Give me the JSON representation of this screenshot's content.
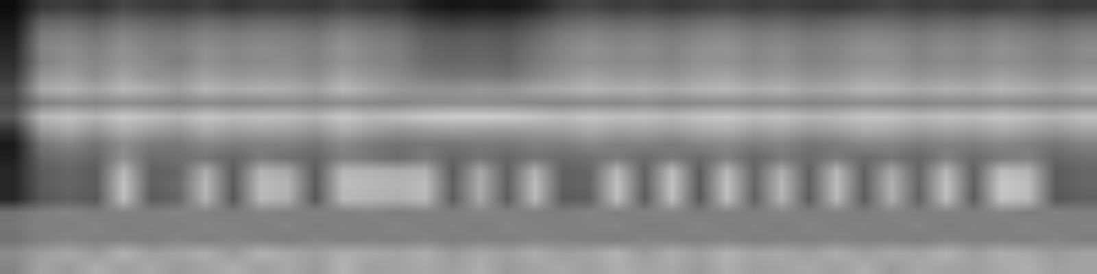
{
  "chart_data": {
    "type": "heatmap",
    "tick_labels": false,
    "color_range": [
      0,
      100
    ],
    "cells": [
      [
        5,
        22,
        25,
        20,
        28,
        24,
        22,
        26,
        20,
        25,
        24,
        22,
        27,
        23,
        21,
        12,
        8,
        10,
        9,
        14,
        25,
        28,
        24,
        26,
        22,
        25,
        27,
        24,
        26,
        23,
        22,
        25,
        28,
        24,
        26,
        23,
        25,
        27,
        22,
        24
      ],
      [
        8,
        38,
        40,
        35,
        42,
        38,
        36,
        41,
        37,
        40,
        39,
        36,
        42,
        38,
        35,
        26,
        22,
        24,
        23,
        30,
        38,
        42,
        39,
        40,
        37,
        41,
        43,
        38,
        40,
        36,
        38,
        42,
        41,
        37,
        40,
        38,
        42,
        39,
        36,
        40
      ],
      [
        12,
        48,
        50,
        45,
        52,
        47,
        46,
        51,
        48,
        50,
        49,
        46,
        53,
        48,
        45,
        36,
        34,
        35,
        33,
        40,
        48,
        52,
        49,
        50,
        47,
        51,
        53,
        48,
        50,
        46,
        48,
        52,
        51,
        47,
        50,
        48,
        52,
        49,
        46,
        50
      ],
      [
        15,
        52,
        55,
        50,
        57,
        51,
        50,
        56,
        52,
        55,
        53,
        50,
        58,
        52,
        49,
        40,
        38,
        39,
        37,
        45,
        52,
        57,
        53,
        55,
        51,
        56,
        58,
        52,
        55,
        50,
        52,
        57,
        56,
        51,
        55,
        52,
        57,
        53,
        50,
        55
      ],
      [
        18,
        50,
        56,
        52,
        58,
        54,
        49,
        57,
        53,
        54,
        55,
        51,
        57,
        53,
        50,
        42,
        40,
        41,
        39,
        47,
        53,
        56,
        54,
        54,
        52,
        57,
        57,
        53,
        56,
        51,
        53,
        56,
        57,
        52,
        54,
        53,
        56,
        54,
        51,
        54
      ],
      [
        22,
        58,
        62,
        55,
        64,
        57,
        56,
        63,
        58,
        60,
        59,
        55,
        64,
        58,
        54,
        48,
        46,
        47,
        45,
        52,
        58,
        63,
        59,
        60,
        57,
        62,
        64,
        58,
        61,
        56,
        58,
        63,
        62,
        57,
        60,
        58,
        63,
        59,
        56,
        60
      ],
      [
        30,
        66,
        70,
        64,
        72,
        68,
        62,
        71,
        67,
        69,
        68,
        63,
        72,
        66,
        60,
        58,
        57,
        60,
        58,
        64,
        67,
        71,
        68,
        69,
        66,
        70,
        72,
        67,
        70,
        64,
        66,
        71,
        70,
        66,
        69,
        67,
        71,
        68,
        64,
        69
      ],
      [
        28,
        50,
        54,
        52,
        55,
        53,
        51,
        54,
        52,
        53,
        54,
        52,
        55,
        53,
        52,
        54,
        55,
        55,
        54,
        53,
        52,
        54,
        53,
        55,
        52,
        54,
        55,
        53,
        54,
        52,
        53,
        55,
        54,
        52,
        54,
        53,
        55,
        53,
        52,
        54
      ],
      [
        35,
        72,
        76,
        70,
        78,
        74,
        70,
        77,
        73,
        75,
        74,
        70,
        78,
        72,
        74,
        78,
        80,
        80,
        79,
        76,
        73,
        77,
        74,
        75,
        72,
        76,
        78,
        73,
        76,
        70,
        72,
        77,
        76,
        72,
        75,
        73,
        77,
        74,
        70,
        75
      ],
      [
        20,
        60,
        66,
        58,
        68,
        62,
        58,
        67,
        62,
        64,
        63,
        58,
        68,
        62,
        58,
        60,
        62,
        61,
        60,
        62,
        62,
        67,
        63,
        64,
        61,
        66,
        68,
        62,
        65,
        59,
        62,
        67,
        66,
        61,
        64,
        62,
        67,
        63,
        59,
        64
      ],
      [
        10,
        46,
        52,
        45,
        55,
        48,
        47,
        53,
        49,
        50,
        50,
        46,
        54,
        48,
        45,
        47,
        46,
        48,
        47,
        50,
        49,
        54,
        50,
        51,
        48,
        52,
        54,
        49,
        52,
        46,
        48,
        53,
        52,
        48,
        51,
        49,
        53,
        50,
        46,
        51
      ],
      [
        12,
        40,
        44,
        40,
        56,
        42,
        44,
        46,
        40,
        48,
        44,
        40,
        50,
        46,
        42,
        48,
        40,
        46,
        40,
        46,
        42,
        44,
        48,
        42,
        48,
        42,
        50,
        40,
        48,
        42,
        48,
        42,
        46,
        40,
        50,
        42,
        48,
        50,
        40,
        44
      ],
      [
        15,
        36,
        40,
        36,
        72,
        38,
        40,
        68,
        36,
        70,
        66,
        36,
        72,
        70,
        68,
        70,
        36,
        66,
        38,
        70,
        38,
        40,
        72,
        38,
        74,
        36,
        72,
        40,
        68,
        38,
        72,
        38,
        66,
        40,
        72,
        38,
        74,
        70,
        36,
        40
      ],
      [
        15,
        36,
        40,
        36,
        76,
        38,
        42,
        72,
        36,
        74,
        70,
        36,
        74,
        72,
        70,
        74,
        38,
        68,
        38,
        74,
        38,
        40,
        76,
        38,
        76,
        36,
        76,
        40,
        72,
        38,
        74,
        38,
        70,
        40,
        76,
        38,
        78,
        74,
        36,
        40
      ],
      [
        15,
        34,
        38,
        34,
        74,
        36,
        40,
        70,
        34,
        72,
        68,
        34,
        72,
        70,
        68,
        72,
        36,
        66,
        36,
        72,
        36,
        38,
        74,
        36,
        74,
        34,
        74,
        38,
        70,
        36,
        72,
        36,
        68,
        38,
        74,
        36,
        76,
        72,
        34,
        38
      ],
      [
        45,
        50,
        52,
        49,
        51,
        50,
        52,
        51,
        49,
        52,
        50,
        51,
        50,
        52,
        49,
        51,
        50,
        52,
        51,
        50,
        49,
        52,
        50,
        51,
        52,
        49,
        51,
        50,
        52,
        50,
        51,
        49,
        52,
        50,
        51,
        50,
        52,
        49,
        51,
        50
      ],
      [
        46,
        51,
        50,
        52,
        49,
        51,
        50,
        52,
        51,
        50,
        52,
        49,
        51,
        50,
        52,
        50,
        51,
        49,
        52,
        51,
        50,
        51,
        52,
        49,
        50,
        52,
        50,
        51,
        49,
        52,
        50,
        51,
        50,
        52,
        49,
        51,
        50,
        52,
        50,
        51
      ],
      [
        45,
        50,
        52,
        50,
        51,
        49,
        52,
        50,
        52,
        51,
        49,
        52,
        50,
        51,
        50,
        52,
        49,
        51,
        50,
        52,
        51,
        50,
        49,
        52,
        51,
        50,
        52,
        49,
        51,
        50,
        52,
        50,
        51,
        49,
        52,
        50,
        51,
        50,
        52,
        49
      ],
      [
        55,
        62,
        66,
        60,
        70,
        62,
        64,
        68,
        60,
        70,
        66,
        62,
        68,
        66,
        64,
        68,
        60,
        66,
        62,
        68,
        62,
        64,
        70,
        60,
        68,
        62,
        70,
        64,
        66,
        62,
        68,
        62,
        66,
        64,
        70,
        62,
        68,
        66,
        60,
        64
      ],
      [
        52,
        64,
        60,
        68,
        62,
        66,
        60,
        64,
        68,
        62,
        66,
        60,
        70,
        62,
        64,
        66,
        62,
        68,
        60,
        64,
        66,
        62,
        68,
        64,
        66,
        60,
        68,
        62,
        64,
        66,
        62,
        68,
        60,
        66,
        64,
        62,
        66,
        68,
        62,
        64
      ]
    ]
  }
}
